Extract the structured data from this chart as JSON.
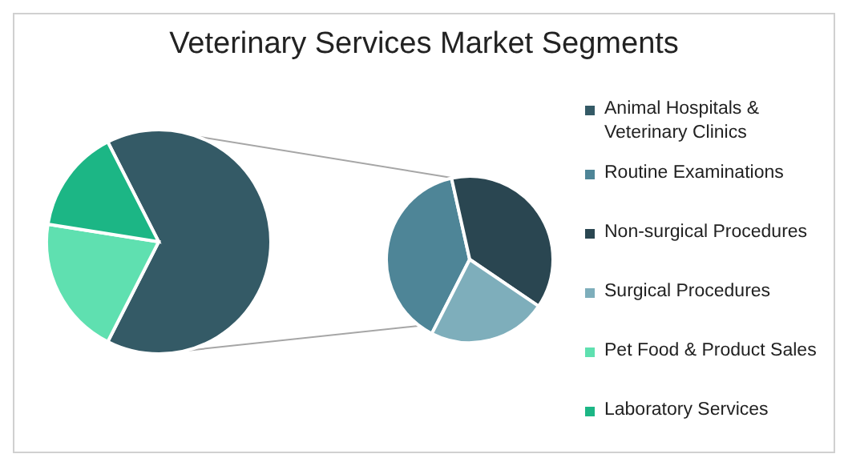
{
  "chart_data": [
    {
      "type": "pie",
      "title": "Veterinary Services Market Segments",
      "categories": [
        "Animal Hospitals & Veterinary Clinics",
        "Pet Food & Product Sales",
        "Laboratory Services"
      ],
      "values": [
        65,
        20,
        15
      ],
      "colors": [
        "#345a66",
        "#5fe0b0",
        "#1cb685"
      ],
      "legend": "right"
    },
    {
      "type": "pie",
      "categories": [
        "Routine Examinations",
        "Non-surgical Procedures",
        "Surgical Procedures"
      ],
      "values": [
        39,
        38,
        23
      ],
      "colors": [
        "#4e8597",
        "#2a4651",
        "#7eaebb"
      ],
      "legend": "right"
    }
  ]
}
